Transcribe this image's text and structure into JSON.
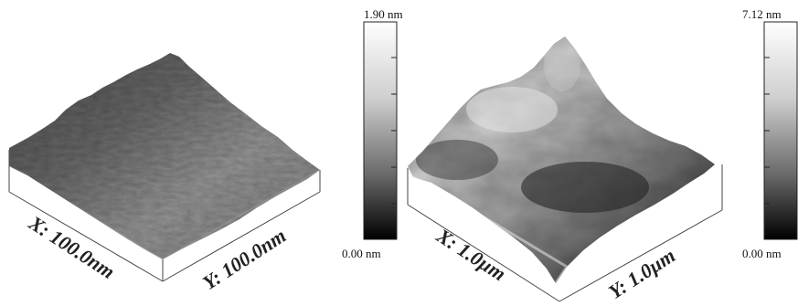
{
  "panels": [
    {
      "x_label": "X: 100.0nm",
      "y_label": "Y: 100.0nm",
      "scale_max": "1.90 nm",
      "scale_min": "0.00 nm"
    },
    {
      "x_label": "X: 1.0µm",
      "y_label": "Y: 1.0µm",
      "scale_max": "7.12 nm",
      "scale_min": "0.00 nm"
    }
  ]
}
